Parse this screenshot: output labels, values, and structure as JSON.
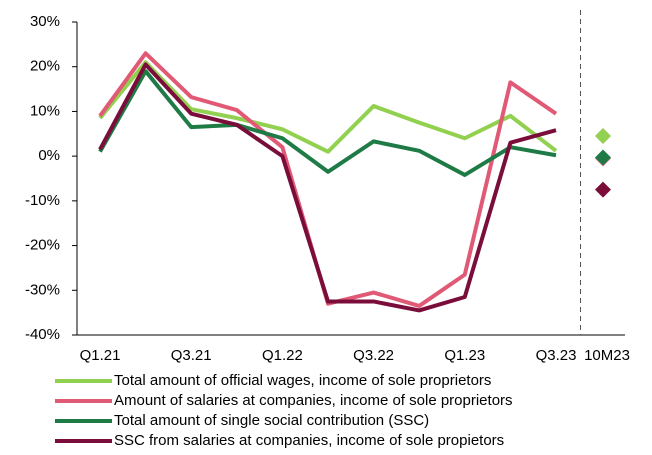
{
  "chart_data": {
    "type": "line",
    "categories": [
      "Q1.21",
      null,
      "Q3.21",
      null,
      "Q1.22",
      null,
      "Q3.22",
      null,
      "Q1.23",
      null,
      "Q3.23",
      "10M23"
    ],
    "series": [
      {
        "name": "Total amount of official wages, income of sole proprietors",
        "color": "#92d050",
        "values": [
          8.5,
          21,
          10.5,
          8.5,
          6,
          1,
          11.2,
          7.5,
          4,
          9,
          1.2,
          4.5
        ]
      },
      {
        "name": "Amount of salaries at companies, income of sole proprietors",
        "color": "#e05a75",
        "values": [
          9,
          23,
          13.2,
          10.3,
          2,
          -33,
          -30.5,
          -33.5,
          -26.5,
          16.5,
          9.5,
          -0.5
        ]
      },
      {
        "name": "Total amount of single social contribution (SSC)",
        "color": "#1e7b46",
        "values": [
          1,
          19,
          6.5,
          7,
          4,
          -3.5,
          3.3,
          1.2,
          -4.2,
          2,
          0.2,
          -0.3
        ]
      },
      {
        "name": "SSC from salaries at companies, income of sole propietors",
        "color": "#7b0d3a",
        "values": [
          1.5,
          20.5,
          9.5,
          7,
          0,
          -32.5,
          -32.5,
          -34.5,
          -31.5,
          3,
          5.8,
          -7.5
        ]
      }
    ],
    "ylim": [
      -40,
      30
    ],
    "yticks": [
      {
        "value": -40,
        "label": "-40%"
      },
      {
        "value": -30,
        "label": "-30%"
      },
      {
        "value": -20,
        "label": "-20%"
      },
      {
        "value": -10,
        "label": "-10%"
      },
      {
        "value": 0,
        "label": "0%"
      },
      {
        "value": 10,
        "label": "10%"
      },
      {
        "value": 20,
        "label": "20%"
      },
      {
        "value": 30,
        "label": "30%"
      }
    ]
  }
}
